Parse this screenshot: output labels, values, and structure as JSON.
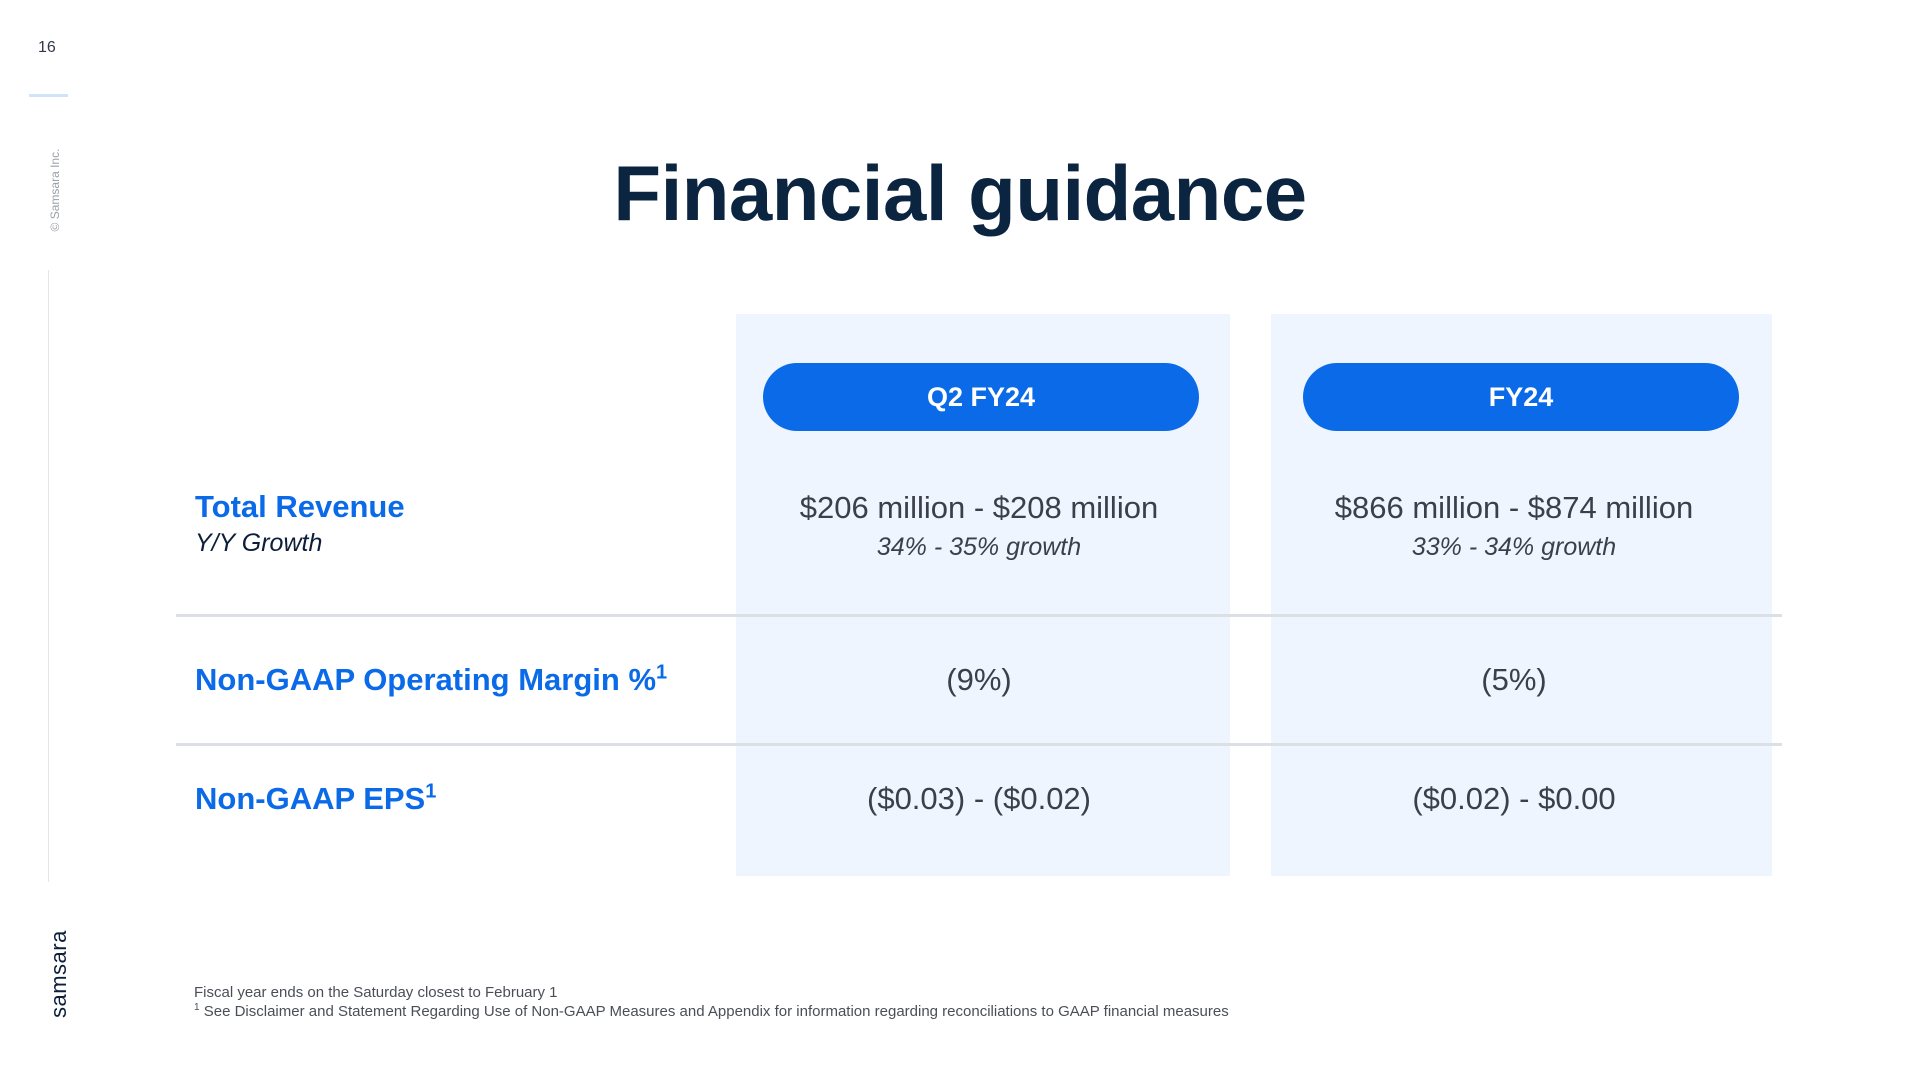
{
  "page": {
    "number": "16",
    "copyright": "© Samsara Inc.",
    "logo": "samsara",
    "title": "Financial guidance"
  },
  "columns": [
    {
      "label": "Q2 FY24"
    },
    {
      "label": "FY24"
    }
  ],
  "rows": {
    "revenue": {
      "label": "Total Revenue",
      "sublabel": "Y/Y Growth",
      "q2": "$206 million - $208 million",
      "q2_growth": "34% - 35% growth",
      "fy": "$866 million - $874 million",
      "fy_growth": "33% - 34% growth"
    },
    "margin": {
      "label": "Non-GAAP Operating Margin %",
      "footnote_marker": "1",
      "q2": "(9%)",
      "fy": "(5%)"
    },
    "eps": {
      "label": "Non-GAAP EPS",
      "footnote_marker": "1",
      "q2": "($0.03) - ($0.02)",
      "fy": "($0.02) - $0.00"
    }
  },
  "footnotes": {
    "line1": "Fiscal year ends on the Saturday closest to February 1",
    "marker": "1",
    "line2": "See Disclaimer and Statement Regarding Use of Non-GAAP Measures and Appendix for information regarding reconciliations to GAAP financial measures"
  },
  "colors": {
    "accent": "#0a6ae8",
    "column_background": "#eef5fe",
    "title": "#0b2540"
  }
}
